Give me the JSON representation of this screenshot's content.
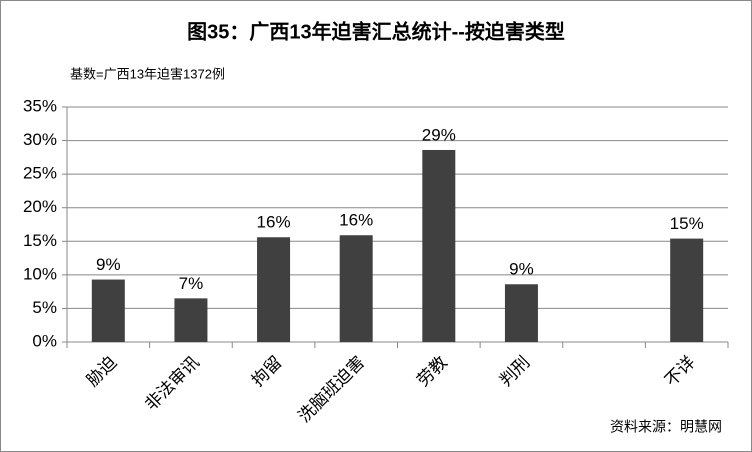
{
  "chart_data": {
    "type": "bar",
    "title": "图35：广西13年迫害汇总统计--按迫害类型",
    "subtitle": "基数=广西13年迫害1372例",
    "source": "资料来源：明慧网",
    "categories": [
      "胁迫",
      "非法审讯",
      "拘留",
      "洗脑班迫害",
      "劳教",
      "判刑",
      null,
      "不详"
    ],
    "values": [
      9.3,
      6.5,
      15.6,
      15.9,
      28.6,
      8.6,
      null,
      15.4
    ],
    "value_labels": [
      "9%",
      "7%",
      "16%",
      "16%",
      "29%",
      "9%",
      null,
      "15%"
    ],
    "color": "#404040",
    "ylim": [
      0,
      35
    ],
    "yticks": [
      {
        "value": 0,
        "label": "0%"
      },
      {
        "value": 5,
        "label": "5%"
      },
      {
        "value": 10,
        "label": "10%"
      },
      {
        "value": 15,
        "label": "15%"
      },
      {
        "value": 20,
        "label": "20%"
      },
      {
        "value": 25,
        "label": "25%"
      },
      {
        "value": 30,
        "label": "30%"
      },
      {
        "value": 35,
        "label": "35%"
      }
    ],
    "grid": true
  }
}
